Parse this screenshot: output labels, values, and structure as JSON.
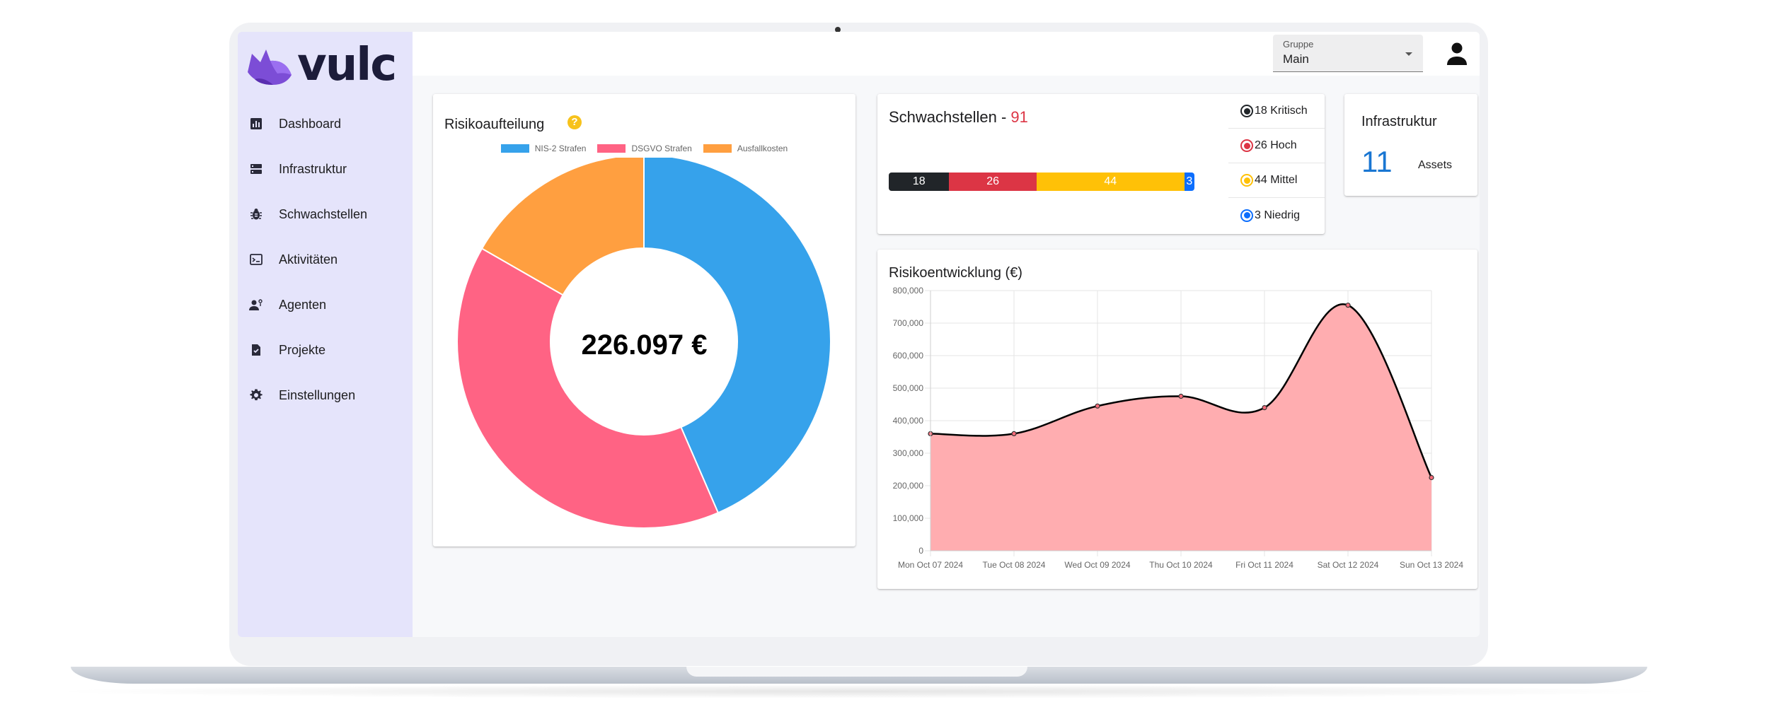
{
  "app": {
    "logo_text": "vulc"
  },
  "sidebar": {
    "items": [
      {
        "label": "Dashboard",
        "icon": "bar-chart-icon"
      },
      {
        "label": "Infrastruktur",
        "icon": "server-icon"
      },
      {
        "label": "Schwachstellen",
        "icon": "bug-icon"
      },
      {
        "label": "Aktivitäten",
        "icon": "terminal-icon"
      },
      {
        "label": "Agenten",
        "icon": "agent-icon"
      },
      {
        "label": "Projekte",
        "icon": "task-file-icon"
      },
      {
        "label": "Einstellungen",
        "icon": "gear-icon"
      }
    ]
  },
  "topbar": {
    "group_label": "Gruppe",
    "group_value": "Main",
    "user_icon": "user-icon"
  },
  "risk_card": {
    "title": "Risikoaufteilung",
    "help": "?",
    "total": "226.097 €"
  },
  "vuln_card": {
    "title": "Schwachstellen - ",
    "total": "91",
    "levels": [
      {
        "count": 18,
        "label": "18 Kritisch",
        "color": "#212529"
      },
      {
        "count": 26,
        "label": "26 Hoch",
        "color": "#dc3545"
      },
      {
        "count": 44,
        "label": "44 Mittel",
        "color": "#ffc107"
      },
      {
        "count": 3,
        "label": "3 Niedrig",
        "color": "#0d6efd"
      }
    ]
  },
  "infra_card": {
    "title": "Infrastruktur",
    "count": "11",
    "unit": "Assets"
  },
  "trend_card": {
    "title": "Risikoentwicklung (€)"
  },
  "chart_data": [
    {
      "type": "pie",
      "variant": "doughnut",
      "categories": [
        "NIS-2 Strafen",
        "DSGVO Strafen",
        "Ausfallkosten"
      ],
      "values": [
        0.435,
        0.398,
        0.167
      ],
      "value_unit": "share of total",
      "colors": [
        "#36a2eb",
        "#ff6384",
        "#ff9f40"
      ],
      "legend": "top",
      "center_text": "226.097 €"
    },
    {
      "type": "area",
      "x": [
        "Mon Oct 07 2024",
        "Tue Oct 08 2024",
        "Wed Oct 09 2024",
        "Thu Oct 10 2024",
        "Fri Oct 11 2024",
        "Sat Oct 12 2024",
        "Sun Oct 13 2024"
      ],
      "series": [
        {
          "values": [
            360000,
            360000,
            445000,
            475000,
            440000,
            755000,
            225000
          ],
          "color": "#000000",
          "fill": "#ffadb0"
        }
      ],
      "ylim": [
        0,
        800000
      ],
      "yticks": [
        "0",
        "100,000",
        "200,000",
        "300,000",
        "400,000",
        "500,000",
        "600,000",
        "700,000",
        "800,000"
      ],
      "grid": true
    }
  ]
}
